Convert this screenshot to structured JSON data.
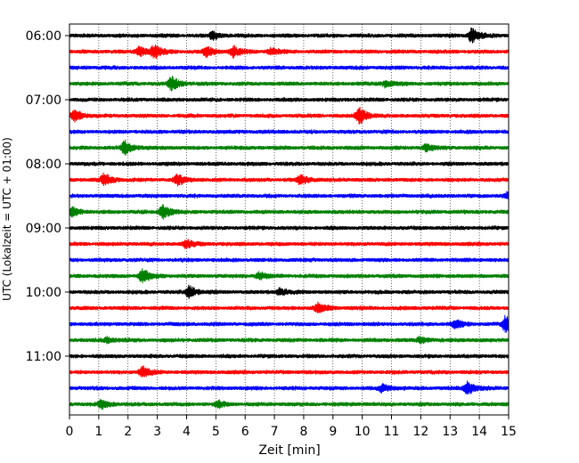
{
  "chart_data": {
    "type": "line",
    "title": "",
    "xlabel": "Zeit  [min]",
    "ylabel": "UTC (Lokalzeit = UTC + 01:00)",
    "xlim": [
      0,
      15
    ],
    "x_ticks": [
      0,
      1,
      2,
      3,
      4,
      5,
      6,
      7,
      8,
      9,
      10,
      11,
      12,
      13,
      14,
      15
    ],
    "x_tick_labels": [
      "0",
      "1",
      "2",
      "3",
      "4",
      "5",
      "6",
      "7",
      "8",
      "9",
      "10",
      "11",
      "12",
      "13",
      "14",
      "15"
    ],
    "y_tick_labels": [
      "06:00",
      "07:00",
      "08:00",
      "09:00",
      "10:00",
      "11:00"
    ],
    "grid": "vertical dotted at each minute",
    "trace_colors": [
      "#000000",
      "#ff0000",
      "#0000ff",
      "#008000"
    ],
    "traces": [
      {
        "start": "06:00",
        "color": "#000000",
        "events": [
          {
            "t": 4.9,
            "amp": 0.5
          },
          {
            "t": 13.75,
            "amp": 1.0
          }
        ]
      },
      {
        "start": "06:15",
        "color": "#ff0000",
        "events": [
          {
            "t": 2.4,
            "amp": 0.7
          },
          {
            "t": 2.9,
            "amp": 0.9
          },
          {
            "t": 4.7,
            "amp": 0.7
          },
          {
            "t": 5.6,
            "amp": 0.8
          },
          {
            "t": 6.9,
            "amp": 0.5
          }
        ]
      },
      {
        "start": "06:30",
        "color": "#0000ff",
        "events": []
      },
      {
        "start": "06:45",
        "color": "#008000",
        "events": [
          {
            "t": 3.5,
            "amp": 1.0
          },
          {
            "t": 10.8,
            "amp": 0.5
          }
        ]
      },
      {
        "start": "07:00",
        "color": "#000000",
        "events": []
      },
      {
        "start": "07:15",
        "color": "#ff0000",
        "events": [
          {
            "t": 0.2,
            "amp": 0.8
          },
          {
            "t": 9.9,
            "amp": 1.2
          }
        ]
      },
      {
        "start": "07:30",
        "color": "#0000ff",
        "events": []
      },
      {
        "start": "07:45",
        "color": "#008000",
        "events": [
          {
            "t": 1.9,
            "amp": 1.0
          },
          {
            "t": 12.2,
            "amp": 0.5
          }
        ]
      },
      {
        "start": "08:00",
        "color": "#000000",
        "events": []
      },
      {
        "start": "08:15",
        "color": "#ff0000",
        "events": [
          {
            "t": 1.2,
            "amp": 0.9
          },
          {
            "t": 3.7,
            "amp": 0.7
          },
          {
            "t": 7.9,
            "amp": 0.7
          }
        ]
      },
      {
        "start": "08:30",
        "color": "#0000ff",
        "events": [
          {
            "t": 15.0,
            "amp": 0.6
          }
        ]
      },
      {
        "start": "08:45",
        "color": "#008000",
        "events": [
          {
            "t": 0.1,
            "amp": 0.7
          },
          {
            "t": 3.2,
            "amp": 1.0
          }
        ]
      },
      {
        "start": "09:00",
        "color": "#000000",
        "events": []
      },
      {
        "start": "09:15",
        "color": "#ff0000",
        "events": [
          {
            "t": 4.0,
            "amp": 0.6
          }
        ]
      },
      {
        "start": "09:30",
        "color": "#0000ff",
        "events": []
      },
      {
        "start": "09:45",
        "color": "#008000",
        "events": [
          {
            "t": 2.5,
            "amp": 1.0
          },
          {
            "t": 6.5,
            "amp": 0.5
          }
        ]
      },
      {
        "start": "10:00",
        "color": "#000000",
        "events": [
          {
            "t": 4.1,
            "amp": 0.9
          },
          {
            "t": 7.2,
            "amp": 0.5
          }
        ]
      },
      {
        "start": "10:15",
        "color": "#ff0000",
        "events": [
          {
            "t": 8.5,
            "amp": 0.7
          }
        ]
      },
      {
        "start": "10:30",
        "color": "#0000ff",
        "events": [
          {
            "t": 13.2,
            "amp": 0.6
          },
          {
            "t": 14.9,
            "amp": 1.2
          }
        ]
      },
      {
        "start": "10:45",
        "color": "#008000",
        "events": [
          {
            "t": 1.3,
            "amp": 0.4
          },
          {
            "t": 12.0,
            "amp": 0.4
          }
        ]
      },
      {
        "start": "11:00",
        "color": "#000000",
        "events": []
      },
      {
        "start": "11:15",
        "color": "#ff0000",
        "events": [
          {
            "t": 2.5,
            "amp": 0.8
          }
        ]
      },
      {
        "start": "11:30",
        "color": "#0000ff",
        "events": [
          {
            "t": 10.7,
            "amp": 0.6
          },
          {
            "t": 13.6,
            "amp": 1.0
          }
        ]
      },
      {
        "start": "11:45",
        "color": "#008000",
        "events": [
          {
            "t": 1.1,
            "amp": 0.6
          },
          {
            "t": 5.1,
            "amp": 0.4
          }
        ]
      }
    ]
  }
}
